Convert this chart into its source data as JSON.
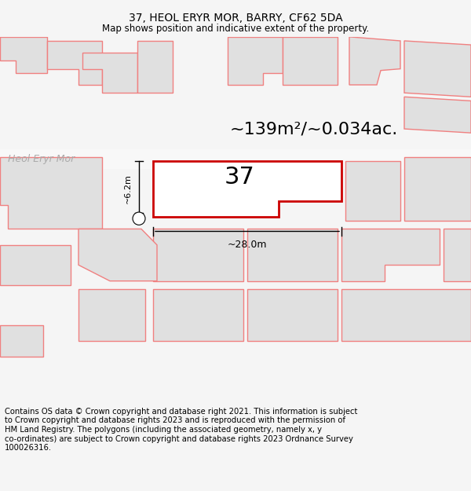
{
  "title": "37, HEOL ERYR MOR, BARRY, CF62 5DA",
  "subtitle": "Map shows position and indicative extent of the property.",
  "footer_text": "Contains OS data © Crown copyright and database right 2021. This information is subject\nto Crown copyright and database rights 2023 and is reproduced with the permission of\nHM Land Registry. The polygons (including the associated geometry, namely x, y\nco-ordinates) are subject to Crown copyright and database rights 2023 Ordnance Survey\n100026316.",
  "area_text": "~139m²/~0.034ac.",
  "street_label": "Heol Eryr Mor",
  "plot_number": "37",
  "dim_width": "~28.0m",
  "dim_height": "~6.2m",
  "bg_color": "#f5f5f5",
  "map_bg": "#ffffff",
  "plot_fill": "#ffffff",
  "plot_edge": "#cc0000",
  "neighbor_fill": "#e0e0e0",
  "neighbor_edge": "#f08080",
  "road_color": "#ffffff",
  "title_fontsize": 10,
  "subtitle_fontsize": 8.5,
  "footer_fontsize": 7.2,
  "area_fontsize": 16,
  "plot_num_fontsize": 22,
  "street_fontsize": 9
}
